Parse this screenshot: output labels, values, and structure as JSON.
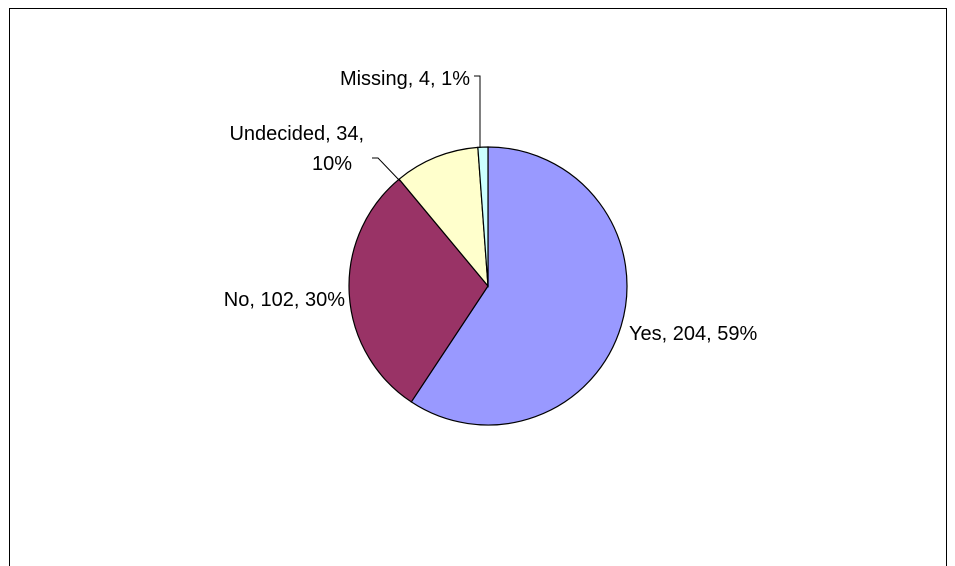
{
  "chart_data": {
    "type": "pie",
    "slices": [
      {
        "label": "Yes",
        "value": 204,
        "percent": "59%",
        "color": "#9999FF"
      },
      {
        "label": "No",
        "value": 102,
        "percent": "30%",
        "color": "#993366"
      },
      {
        "label": "Undecided",
        "value": 34,
        "percent": "10%",
        "color": "#FFFFCC"
      },
      {
        "label": "Missing",
        "value": 4,
        "percent": "1%",
        "color": "#CCFFFF"
      }
    ],
    "label_texts": {
      "yes": "Yes, 204, 59%",
      "no": "No, 102, 30%",
      "undecided_line1": "Undecided, 34,",
      "undecided_line2": "10%",
      "missing": "Missing, 4, 1%"
    },
    "start_angle": "12 o'clock",
    "direction": "clockwise",
    "legend": "none"
  }
}
